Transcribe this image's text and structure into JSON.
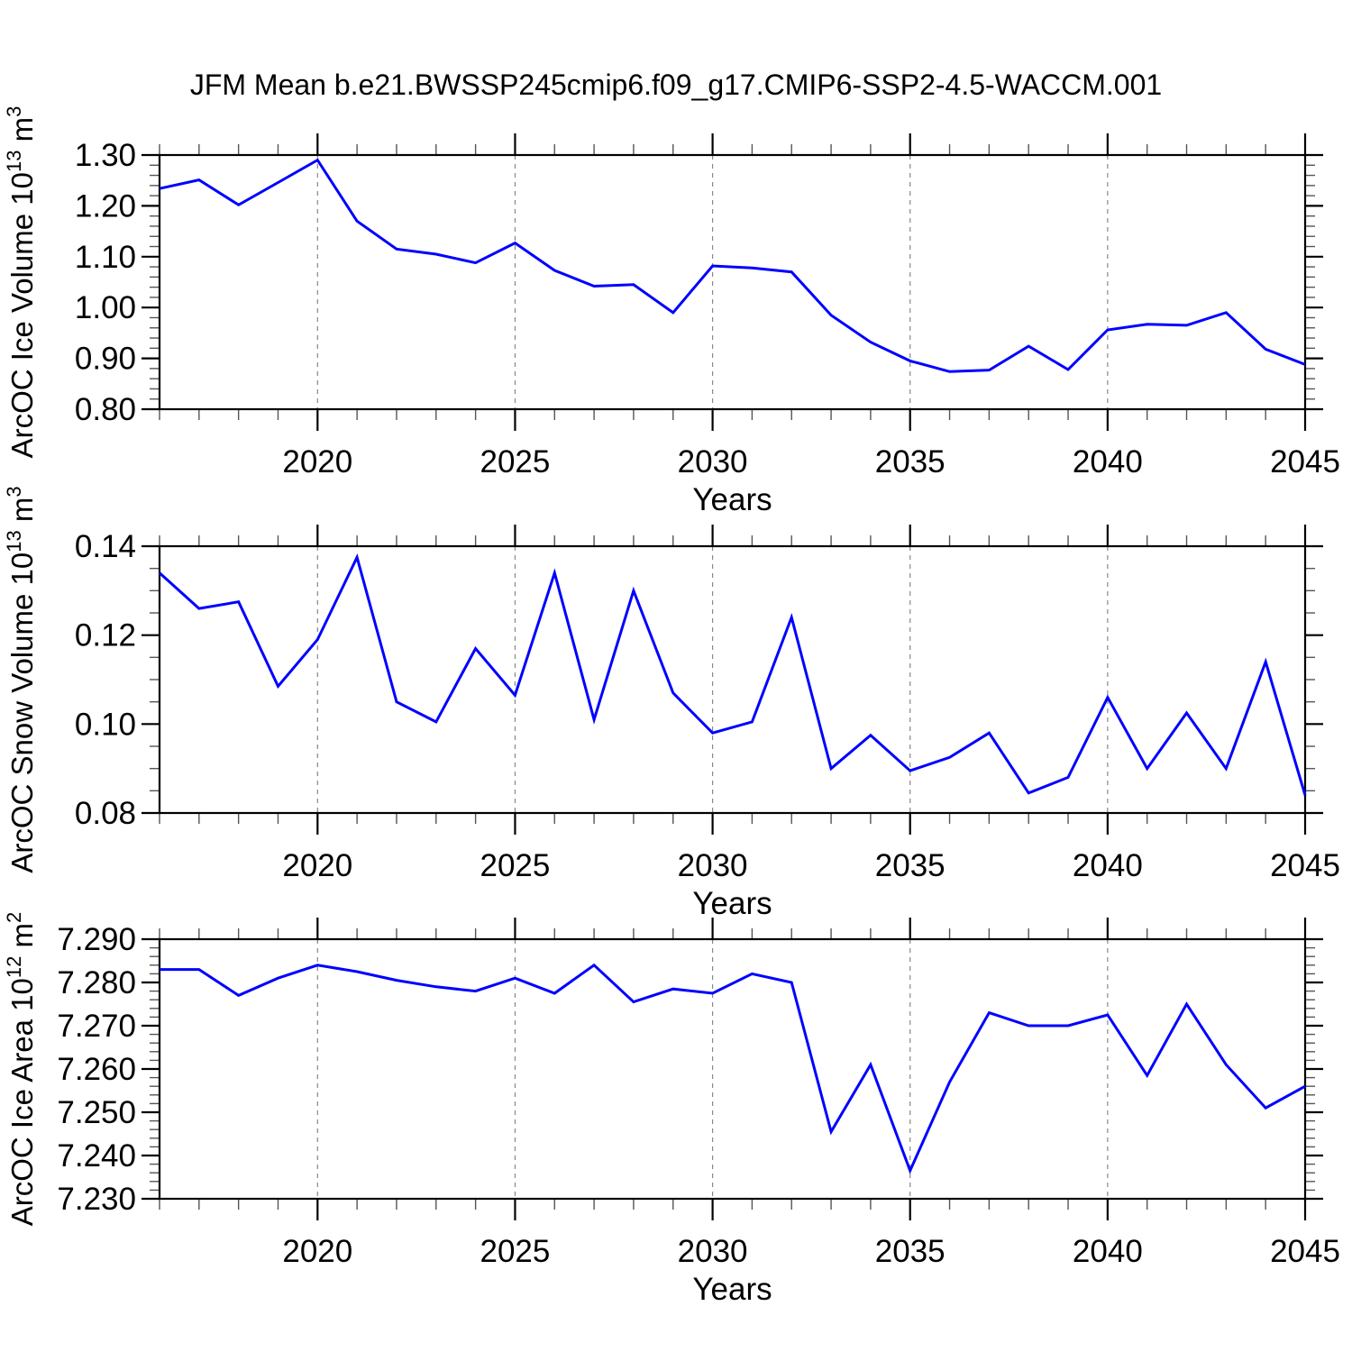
{
  "title": "JFM Mean b.e21.BWSSP245cmip6.f09_g17.CMIP6-SSP2-4.5-WACCM.001",
  "figure": {
    "background": "#ffffff",
    "line_color": "#0000ff",
    "frame_color": "#000000",
    "grid_color": "#888888",
    "minor_tick_color": "#555555",
    "text_color": "#000000"
  },
  "x_axis": {
    "label": "Years",
    "range": [
      2016,
      2045
    ],
    "years": [
      2016,
      2017,
      2018,
      2019,
      2020,
      2021,
      2022,
      2023,
      2024,
      2025,
      2026,
      2027,
      2028,
      2029,
      2030,
      2031,
      2032,
      2033,
      2034,
      2035,
      2036,
      2037,
      2038,
      2039,
      2040,
      2041,
      2042,
      2043,
      2044,
      2045
    ],
    "major_ticks": [
      2020,
      2025,
      2030,
      2035,
      2040,
      2045
    ],
    "major_tick_labels": [
      "2020",
      "2025",
      "2030",
      "2035",
      "2040",
      "2045"
    ],
    "minor_step": 1,
    "gridline_years": [
      2020,
      2025,
      2030,
      2035,
      2040
    ],
    "grid_style": "dashed"
  },
  "chart_data": [
    {
      "type": "line",
      "name": "ice-volume-panel",
      "ylabel": "ArcOC Ice Volume 10^13 m^3",
      "ylabel_segments": [
        {
          "text": "ArcOC Ice Volume 10"
        },
        {
          "sup": "13"
        },
        {
          "text": " m"
        },
        {
          "sup": "3"
        }
      ],
      "ylim": [
        0.8,
        1.3
      ],
      "y_major": [
        1.3,
        1.2,
        1.1,
        1.0,
        0.9,
        0.8
      ],
      "y_major_labels": [
        "1.30",
        "1.20",
        "1.10",
        "1.00",
        "0.90",
        "0.80"
      ],
      "y_minor_step": 0.02,
      "legend": "none",
      "grid": "vertical-dashed",
      "values": [
        1.234,
        1.251,
        1.202,
        1.246,
        1.29,
        1.17,
        1.115,
        1.105,
        1.088,
        1.127,
        1.073,
        1.042,
        1.045,
        0.99,
        1.082,
        1.078,
        1.07,
        0.985,
        0.932,
        0.895,
        0.874,
        0.877,
        0.924,
        0.878,
        0.956,
        0.967,
        0.965,
        0.99,
        0.918,
        0.888
      ]
    },
    {
      "type": "line",
      "name": "snow-volume-panel",
      "ylabel": "ArcOC Snow Volume 10^13 m^3",
      "ylabel_segments": [
        {
          "text": "ArcOC Snow Volume 10"
        },
        {
          "sup": "13"
        },
        {
          "text": " m"
        },
        {
          "sup": "3"
        }
      ],
      "ylim": [
        0.08,
        0.14
      ],
      "y_major": [
        0.14,
        0.12,
        0.1,
        0.08
      ],
      "y_major_labels": [
        "0.14",
        "0.12",
        "0.10",
        "0.08"
      ],
      "y_minor_step": 0.005,
      "legend": "none",
      "grid": "vertical-dashed",
      "values": [
        0.134,
        0.126,
        0.1275,
        0.1085,
        0.119,
        0.1375,
        0.105,
        0.1005,
        0.117,
        0.1065,
        0.134,
        0.101,
        0.13,
        0.107,
        0.098,
        0.1005,
        0.124,
        0.09,
        0.0975,
        0.0895,
        0.0925,
        0.098,
        0.0845,
        0.088,
        0.106,
        0.09,
        0.1025,
        0.09,
        0.114,
        0.084
      ]
    },
    {
      "type": "line",
      "name": "ice-area-panel",
      "ylabel": "ArcOC Ice Area 10^12 m^2",
      "ylabel_segments": [
        {
          "text": "ArcOC Ice Area 10"
        },
        {
          "sup": "12"
        },
        {
          "text": " m"
        },
        {
          "sup": "2"
        }
      ],
      "ylim": [
        7.23,
        7.29
      ],
      "y_major": [
        7.29,
        7.28,
        7.27,
        7.26,
        7.25,
        7.24,
        7.23
      ],
      "y_major_labels": [
        "7.290",
        "7.280",
        "7.270",
        "7.260",
        "7.250",
        "7.240",
        "7.230"
      ],
      "y_minor_step": 0.002,
      "legend": "none",
      "grid": "vertical-dashed",
      "values": [
        7.283,
        7.283,
        7.277,
        7.281,
        7.284,
        7.2825,
        7.2805,
        7.279,
        7.278,
        7.281,
        7.2775,
        7.284,
        7.2755,
        7.2785,
        7.2775,
        7.282,
        7.28,
        7.2455,
        7.261,
        7.2365,
        7.257,
        7.273,
        7.27,
        7.27,
        7.2725,
        7.2585,
        7.275,
        7.261,
        7.251,
        7.256
      ]
    }
  ]
}
